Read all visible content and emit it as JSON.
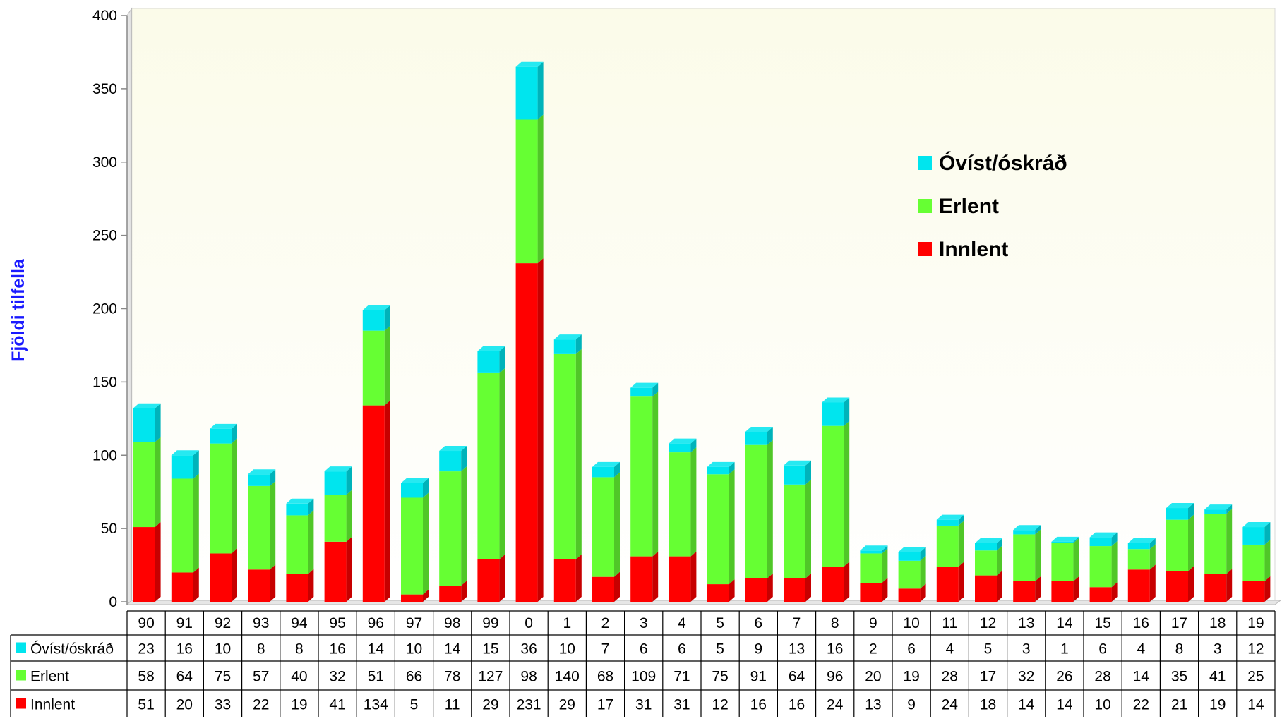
{
  "chart_data": {
    "type": "bar",
    "stacked": true,
    "ylabel": "Fjöldi tilfella",
    "xlabel": "",
    "title": "",
    "ylim": [
      0,
      400
    ],
    "yticks": [
      0,
      50,
      100,
      150,
      200,
      250,
      300,
      350,
      400
    ],
    "categories": [
      "90",
      "91",
      "92",
      "93",
      "94",
      "95",
      "96",
      "97",
      "98",
      "99",
      "0",
      "1",
      "2",
      "3",
      "4",
      "5",
      "6",
      "7",
      "8",
      "9",
      "10",
      "11",
      "12",
      "13",
      "14",
      "15",
      "16",
      "17",
      "18",
      "19"
    ],
    "series": [
      {
        "name": "Innlent",
        "color": "#ff0000",
        "values": [
          51,
          20,
          33,
          22,
          19,
          41,
          134,
          5,
          11,
          29,
          231,
          29,
          17,
          31,
          31,
          12,
          16,
          16,
          24,
          13,
          9,
          24,
          18,
          14,
          14,
          10,
          22,
          21,
          19,
          14
        ]
      },
      {
        "name": "Erlent",
        "color": "#66ff33",
        "values": [
          58,
          64,
          75,
          57,
          40,
          32,
          51,
          66,
          78,
          127,
          98,
          140,
          68,
          109,
          71,
          75,
          91,
          64,
          96,
          20,
          19,
          28,
          17,
          32,
          26,
          28,
          14,
          35,
          41,
          25
        ]
      },
      {
        "name": "Óvíst/óskráð",
        "color": "#00e5ee",
        "values": [
          23,
          16,
          10,
          8,
          8,
          16,
          14,
          10,
          14,
          15,
          36,
          10,
          7,
          6,
          6,
          5,
          9,
          13,
          16,
          2,
          6,
          4,
          5,
          3,
          1,
          6,
          4,
          8,
          3,
          12
        ]
      }
    ],
    "legend": {
      "placement": "top-right",
      "order": [
        "Óvíst/óskráð",
        "Erlent",
        "Innlent"
      ]
    },
    "data_table": true,
    "grid": false
  }
}
